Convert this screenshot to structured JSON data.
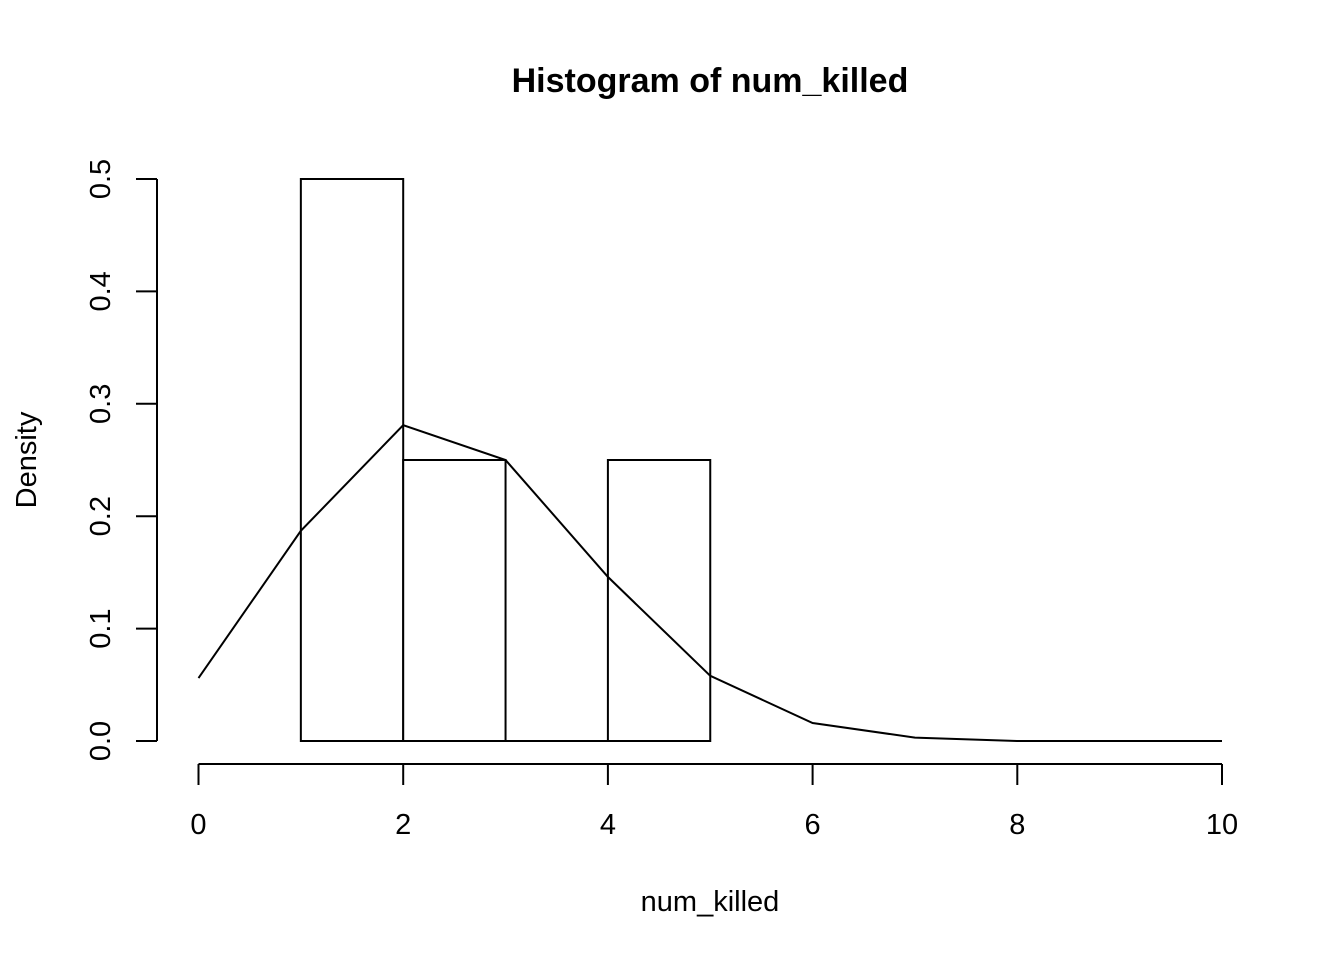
{
  "chart_data": {
    "type": "bar",
    "title": "Histogram of num_killed",
    "xlabel": "num_killed",
    "ylabel": "Density",
    "xlim": [
      0,
      10
    ],
    "ylim": [
      0,
      0.5
    ],
    "x_ticks": [
      0,
      2,
      4,
      6,
      8,
      10
    ],
    "y_ticks": [
      0.0,
      0.1,
      0.2,
      0.3,
      0.4,
      0.5
    ],
    "x_tick_labels": [
      "0",
      "2",
      "4",
      "6",
      "8",
      "10"
    ],
    "y_tick_labels": [
      "0.0",
      "0.1",
      "0.2",
      "0.3",
      "0.4",
      "0.5"
    ],
    "grid": false,
    "bars": [
      {
        "x0": 1,
        "x1": 2,
        "value": 0.5
      },
      {
        "x0": 2,
        "x1": 3,
        "value": 0.25
      },
      {
        "x0": 3,
        "x1": 4,
        "value": 0.0
      },
      {
        "x0": 4,
        "x1": 5,
        "value": 0.25
      }
    ],
    "density_line": {
      "x": [
        0,
        1,
        2,
        3,
        4,
        5,
        6,
        7,
        8,
        9,
        10
      ],
      "y": [
        0.056,
        0.187,
        0.281,
        0.25,
        0.146,
        0.058,
        0.016,
        0.003,
        0.0,
        0.0,
        0.0
      ]
    }
  }
}
